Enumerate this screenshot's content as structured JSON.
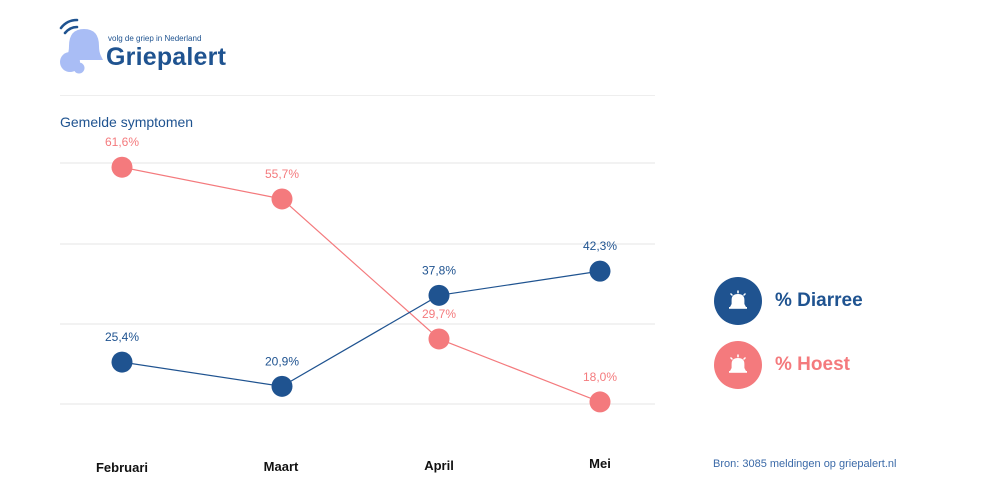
{
  "brand": {
    "tagline": "volg de griep in Nederland",
    "name": "Griepalert",
    "logo_color": "#a9bdf5"
  },
  "source": "Bron: 3085 meldingen op griepalert.nl",
  "chart_data": {
    "type": "line",
    "title": "Gemelde symptomen",
    "categories": [
      "Februari",
      "Maart",
      "April",
      "Mei"
    ],
    "series": [
      {
        "name": "% Diarree",
        "values": [
          25.4,
          20.9,
          37.8,
          42.3
        ],
        "labels": [
          "25,4%",
          "20,9%",
          "37,8%",
          "42,3%"
        ],
        "color": "#1f5390"
      },
      {
        "name": "% Hoest",
        "values": [
          61.6,
          55.7,
          29.7,
          18.0
        ],
        "labels": [
          "61,6%",
          "55,7%",
          "29,7%",
          "18,0%"
        ],
        "color": "#f47a7d"
      }
    ],
    "xlabel": "",
    "ylabel": "",
    "ylim": [
      10,
      70
    ],
    "grid": true,
    "legend": "right"
  }
}
